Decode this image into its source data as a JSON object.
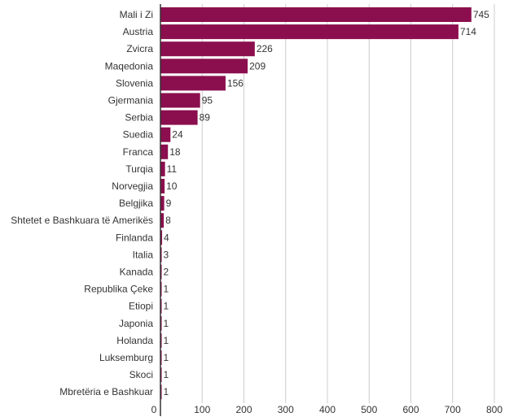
{
  "chart_data": {
    "type": "bar",
    "orientation": "horizontal",
    "categories": [
      "Mali i Zi",
      "Austria",
      "Zvicra",
      "Maqedonia",
      "Slovenia",
      "Gjermania",
      "Serbia",
      "Suedia",
      "Franca",
      "Turqia",
      "Norvegjia",
      "Belgjika",
      "Shtetet e Bashkuara të Amerikës",
      "Finlanda",
      "Italia",
      "Kanada",
      "Republika Çeke",
      "Etiopi",
      "Japonia",
      "Holanda",
      "Luksemburg",
      "Skoci",
      "Mbretëria e Bashkuar"
    ],
    "values": [
      745,
      714,
      226,
      209,
      156,
      95,
      89,
      24,
      18,
      11,
      10,
      9,
      8,
      4,
      3,
      2,
      1,
      1,
      1,
      1,
      1,
      1,
      1
    ],
    "xlim": [
      0,
      800
    ],
    "xticks": [
      0,
      100,
      200,
      300,
      400,
      500,
      600,
      700,
      800
    ],
    "title": "",
    "xlabel": "",
    "ylabel": "",
    "grid": true,
    "legend": "none",
    "bar_color": "#8b0f4e"
  }
}
